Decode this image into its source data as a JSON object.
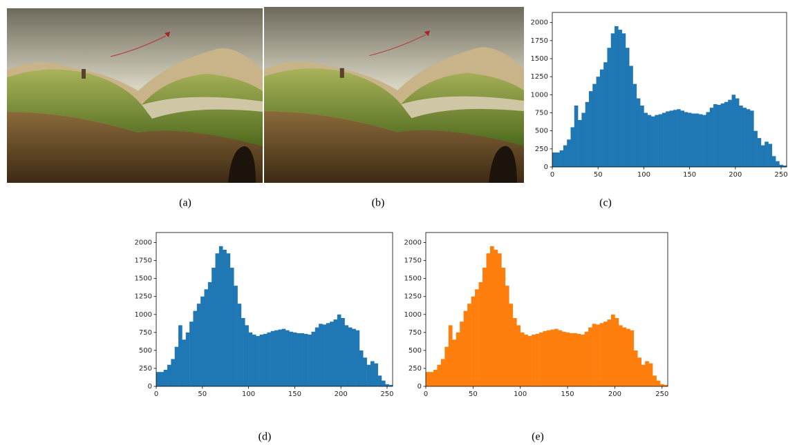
{
  "captions": [
    "(a)",
    "(b)",
    "(c)",
    "(d)",
    "(e)"
  ],
  "chart_data": [
    {
      "type": "histogram",
      "color": "#1f77b4",
      "grid": false,
      "bins": [
        0,
        4,
        8,
        12,
        16,
        20,
        24,
        28,
        32,
        36,
        40,
        44,
        48,
        52,
        56,
        60,
        64,
        68,
        72,
        76,
        80,
        84,
        88,
        92,
        96,
        100,
        104,
        108,
        112,
        116,
        120,
        124,
        128,
        132,
        136,
        140,
        144,
        148,
        152,
        156,
        160,
        164,
        168,
        172,
        176,
        180,
        184,
        188,
        192,
        196,
        200,
        204,
        208,
        212,
        216,
        220,
        224,
        228,
        232,
        236,
        240,
        244,
        248,
        252,
        256
      ],
      "values": [
        200,
        200,
        230,
        300,
        380,
        550,
        850,
        650,
        750,
        900,
        1050,
        1150,
        1250,
        1350,
        1450,
        1650,
        1850,
        1950,
        1900,
        1850,
        1650,
        1400,
        1150,
        950,
        850,
        750,
        720,
        700,
        720,
        730,
        750,
        770,
        780,
        790,
        800,
        780,
        760,
        750,
        740,
        740,
        730,
        720,
        760,
        820,
        870,
        860,
        880,
        900,
        930,
        1000,
        950,
        850,
        820,
        800,
        780,
        500,
        400,
        300,
        350,
        320,
        150,
        80,
        30,
        20
      ],
      "xlim": [
        0,
        256
      ],
      "ylim": [
        0,
        2140
      ],
      "xticks": [
        0,
        50,
        100,
        150,
        200,
        250
      ],
      "yticks": [
        0,
        250,
        500,
        750,
        1000,
        1250,
        1500,
        1750,
        2000
      ]
    },
    {
      "type": "histogram",
      "color": "#1f77b4",
      "grid": false,
      "bins": [
        0,
        4,
        8,
        12,
        16,
        20,
        24,
        28,
        32,
        36,
        40,
        44,
        48,
        52,
        56,
        60,
        64,
        68,
        72,
        76,
        80,
        84,
        88,
        92,
        96,
        100,
        104,
        108,
        112,
        116,
        120,
        124,
        128,
        132,
        136,
        140,
        144,
        148,
        152,
        156,
        160,
        164,
        168,
        172,
        176,
        180,
        184,
        188,
        192,
        196,
        200,
        204,
        208,
        212,
        216,
        220,
        224,
        228,
        232,
        236,
        240,
        244,
        248,
        252,
        256
      ],
      "values": [
        200,
        200,
        230,
        300,
        380,
        550,
        850,
        650,
        750,
        900,
        1050,
        1150,
        1250,
        1350,
        1450,
        1650,
        1850,
        1950,
        1900,
        1850,
        1650,
        1400,
        1150,
        950,
        850,
        750,
        720,
        700,
        720,
        730,
        750,
        770,
        780,
        790,
        800,
        780,
        760,
        750,
        740,
        740,
        730,
        720,
        760,
        820,
        870,
        860,
        880,
        900,
        930,
        1000,
        950,
        850,
        820,
        800,
        780,
        500,
        400,
        300,
        350,
        320,
        150,
        80,
        30,
        20
      ],
      "xlim": [
        0,
        256
      ],
      "ylim": [
        0,
        2140
      ],
      "xticks": [
        0,
        50,
        100,
        150,
        200,
        250
      ],
      "yticks": [
        0,
        250,
        500,
        750,
        1000,
        1250,
        1500,
        1750,
        2000
      ]
    },
    {
      "type": "histogram",
      "color": "#ff7f0e",
      "grid": false,
      "bins": [
        0,
        4,
        8,
        12,
        16,
        20,
        24,
        28,
        32,
        36,
        40,
        44,
        48,
        52,
        56,
        60,
        64,
        68,
        72,
        76,
        80,
        84,
        88,
        92,
        96,
        100,
        104,
        108,
        112,
        116,
        120,
        124,
        128,
        132,
        136,
        140,
        144,
        148,
        152,
        156,
        160,
        164,
        168,
        172,
        176,
        180,
        184,
        188,
        192,
        196,
        200,
        204,
        208,
        212,
        216,
        220,
        224,
        228,
        232,
        236,
        240,
        244,
        248,
        252,
        256
      ],
      "values": [
        200,
        200,
        230,
        300,
        380,
        550,
        850,
        650,
        750,
        900,
        1050,
        1150,
        1250,
        1350,
        1450,
        1650,
        1850,
        1950,
        1900,
        1850,
        1650,
        1400,
        1150,
        950,
        850,
        750,
        720,
        700,
        720,
        730,
        750,
        770,
        780,
        790,
        800,
        780,
        760,
        750,
        740,
        740,
        730,
        720,
        760,
        820,
        870,
        860,
        880,
        900,
        930,
        1000,
        950,
        850,
        820,
        800,
        780,
        500,
        400,
        300,
        350,
        320,
        150,
        80,
        30,
        20
      ],
      "xlim": [
        0,
        256
      ],
      "ylim": [
        0,
        2140
      ],
      "xticks": [
        0,
        50,
        100,
        150,
        200,
        250
      ],
      "yticks": [
        0,
        250,
        500,
        750,
        1000,
        1250,
        1500,
        1750,
        2000
      ]
    }
  ]
}
